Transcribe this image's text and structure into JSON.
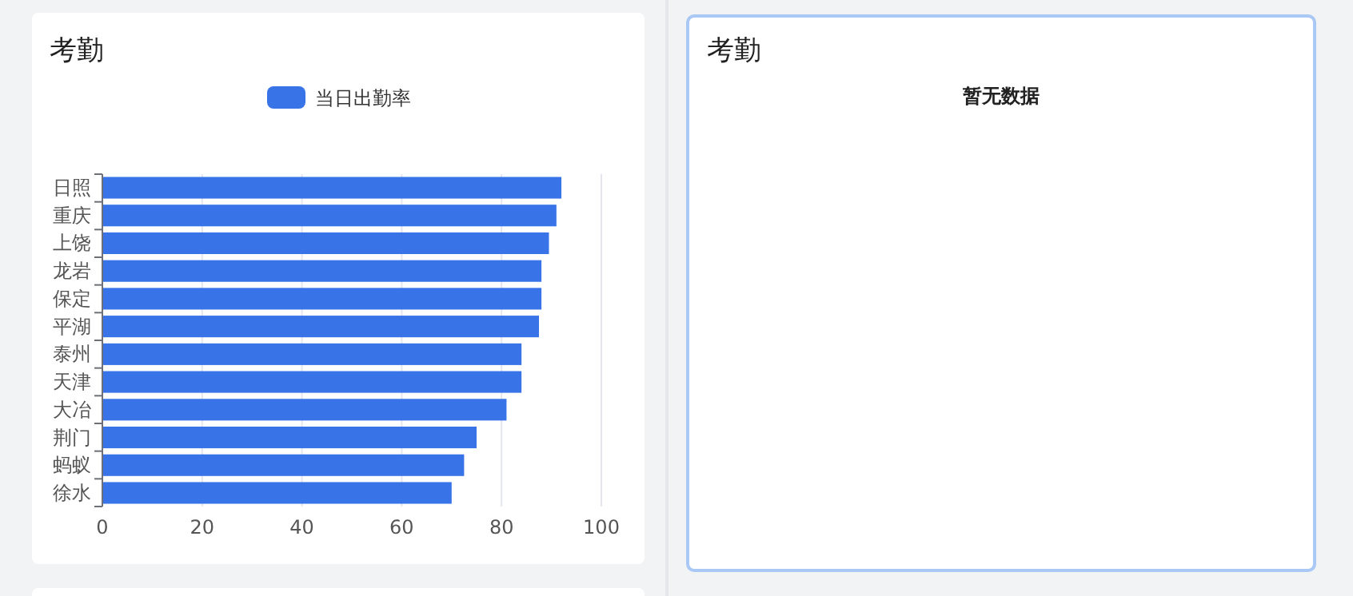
{
  "chart_data": [
    {
      "type": "bar",
      "title": "考勤",
      "orientation": "horizontal",
      "categories": [
        "日照",
        "重庆",
        "上饶",
        "龙岩",
        "保定",
        "平湖",
        "泰州",
        "天津",
        "大冶",
        "荆门",
        "蚂蚁",
        "徐水"
      ],
      "series": [
        {
          "name": "当日出勤率",
          "color": "#3874e8",
          "values": [
            92,
            91,
            89.5,
            88,
            88,
            87.5,
            84,
            84,
            81,
            75,
            72.5,
            70
          ]
        }
      ],
      "xlim": [
        0,
        100
      ],
      "xticks": [
        0,
        20,
        40,
        60,
        80,
        100
      ],
      "grid": "x",
      "legend": "top"
    },
    {
      "type": "other",
      "title": "考勤",
      "annotations": [
        "暂无数据"
      ]
    }
  ]
}
